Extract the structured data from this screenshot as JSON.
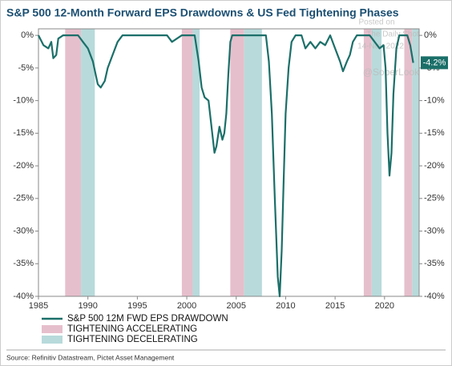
{
  "chart_data": {
    "type": "line",
    "title": "S&P 500 12-Month Forward EPS Drawdowns & US Fed Tightening Phases",
    "x": [
      1985.0,
      1985.5,
      1986.0,
      1986.3,
      1986.5,
      1986.8,
      1987.0,
      1987.5,
      1989.0,
      1989.5,
      1990.0,
      1990.5,
      1991.0,
      1991.3,
      1991.7,
      1992.0,
      1992.5,
      1993.0,
      1993.5,
      1998.0,
      1998.5,
      1999.0,
      1999.5,
      2000.8,
      2001.2,
      2001.5,
      2001.8,
      2002.2,
      2002.5,
      2002.8,
      2003.0,
      2003.3,
      2003.6,
      2003.8,
      2004.0,
      2004.2,
      2004.4,
      2004.6,
      2008.0,
      2008.3,
      2008.6,
      2008.9,
      2009.2,
      2009.4,
      2009.6,
      2009.8,
      2010.0,
      2010.3,
      2010.6,
      2011.0,
      2011.6,
      2012.0,
      2012.5,
      2013.0,
      2013.5,
      2014.0,
      2014.5,
      2015.0,
      2015.5,
      2015.8,
      2016.2,
      2016.5,
      2016.8,
      2017.2,
      2018.5,
      2019.0,
      2019.5,
      2019.9,
      2020.1,
      2020.3,
      2020.5,
      2020.7,
      2020.9,
      2021.2,
      2021.5,
      2022.3,
      2022.6,
      2022.9
    ],
    "series": [
      {
        "name": "S&P 500 12M FWD EPS DRAWDOWN",
        "color": "#1b6f69",
        "values": [
          0,
          -1.5,
          -2,
          -1,
          -3.5,
          -3,
          -0.5,
          0,
          0,
          -1,
          -2,
          -4,
          -7.5,
          -8,
          -7,
          -5,
          -3,
          -1,
          0,
          0,
          -1,
          -0.5,
          0,
          0,
          -4,
          -8,
          -9.5,
          -10,
          -14,
          -18,
          -17,
          -14,
          -16,
          -15,
          -12,
          -6,
          -1,
          0,
          0,
          -4,
          -12,
          -25,
          -37,
          -40,
          -33,
          -22,
          -12,
          -5,
          -1,
          0,
          0,
          -2,
          -1,
          -2,
          -1,
          -1.5,
          0,
          -2,
          -4,
          -5.5,
          -4,
          -3,
          -1,
          0,
          0,
          -1,
          -2,
          -1.5,
          -5,
          -15,
          -21.5,
          -18,
          -9,
          -2,
          0,
          0,
          -1.5,
          -4.2
        ]
      }
    ],
    "end_label": "-4.2%",
    "bands": [
      {
        "name": "TIGHTENING ACCELERATING",
        "color": "#e6bfcc",
        "ranges": [
          [
            1987.7,
            1989.3
          ],
          [
            1999.5,
            2000.6
          ],
          [
            2004.4,
            2005.8
          ],
          [
            2017.9,
            2018.7
          ],
          [
            2022.0,
            2022.8
          ]
        ]
      },
      {
        "name": "TIGHTENING DECELERATING",
        "color": "#b8dadb",
        "ranges": [
          [
            1989.3,
            1990.7
          ],
          [
            2000.6,
            2001.3
          ],
          [
            2005.8,
            2007.6
          ],
          [
            2018.7,
            2019.7
          ],
          [
            2022.8,
            2023.5
          ]
        ]
      }
    ],
    "xlim": [
      1985,
      2023.5
    ],
    "xticks": [
      1985,
      1990,
      1995,
      2000,
      2005,
      2010,
      2015,
      2020
    ],
    "ylim": [
      -40,
      1
    ],
    "yticks": [
      {
        "value": 0,
        "label": "0%"
      },
      {
        "value": -5,
        "label": "-5%"
      },
      {
        "value": -10,
        "label": "-10%"
      },
      {
        "value": -15,
        "label": "-15%"
      },
      {
        "value": -20,
        "label": "-20%"
      },
      {
        "value": -25,
        "label": "-25%"
      },
      {
        "value": -30,
        "label": "-30%"
      },
      {
        "value": -35,
        "label": "-35%"
      },
      {
        "value": -40,
        "label": "-40%"
      }
    ],
    "watermark": [
      "Posted on",
      "The Daily Shot",
      "14-Nov-2022",
      "@SoberLook"
    ],
    "source": "Source: Refinitiv Datastream, Pictet Asset Management"
  }
}
